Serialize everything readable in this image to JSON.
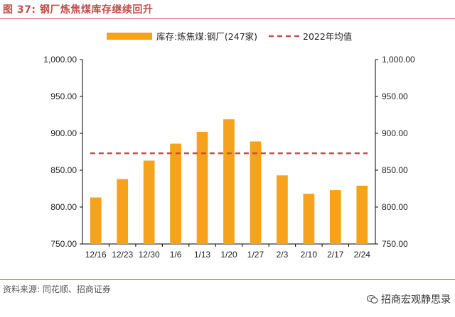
{
  "figure": {
    "label": "图 37:",
    "title": "钢厂炼焦煤库存继续回升",
    "source": "资料来源: 同花顺、招商证券",
    "watermark": "招商宏观静思录"
  },
  "colors": {
    "bar": "#f7a21b",
    "avg_line": "#c0504d",
    "title": "#c0504d",
    "axis": "#000000"
  },
  "chart_data": {
    "type": "bar",
    "categories": [
      "12/16",
      "12/23",
      "12/30",
      "1/6",
      "1/13",
      "1/20",
      "1/27",
      "2/3",
      "2/10",
      "2/17",
      "2/24"
    ],
    "series": [
      {
        "name": "库存:炼焦煤:钢厂(247家)",
        "type": "bar",
        "values": [
          813,
          838,
          863,
          886,
          902,
          919,
          889,
          843,
          818,
          823,
          829
        ]
      },
      {
        "name": "2022年均值",
        "type": "dashed-line",
        "value": 873
      }
    ],
    "ylim": [
      750,
      1000
    ],
    "yticks": [
      "750.00",
      "800.00",
      "850.00",
      "900.00",
      "950.00",
      "1,000.00"
    ],
    "ytick_values": [
      750,
      800,
      850,
      900,
      950,
      1000
    ],
    "y2ticks": [
      "750.00",
      "800.00",
      "850.00",
      "900.00",
      "950.00",
      "1,000.00"
    ],
    "legend_position": "top",
    "grid": false
  }
}
